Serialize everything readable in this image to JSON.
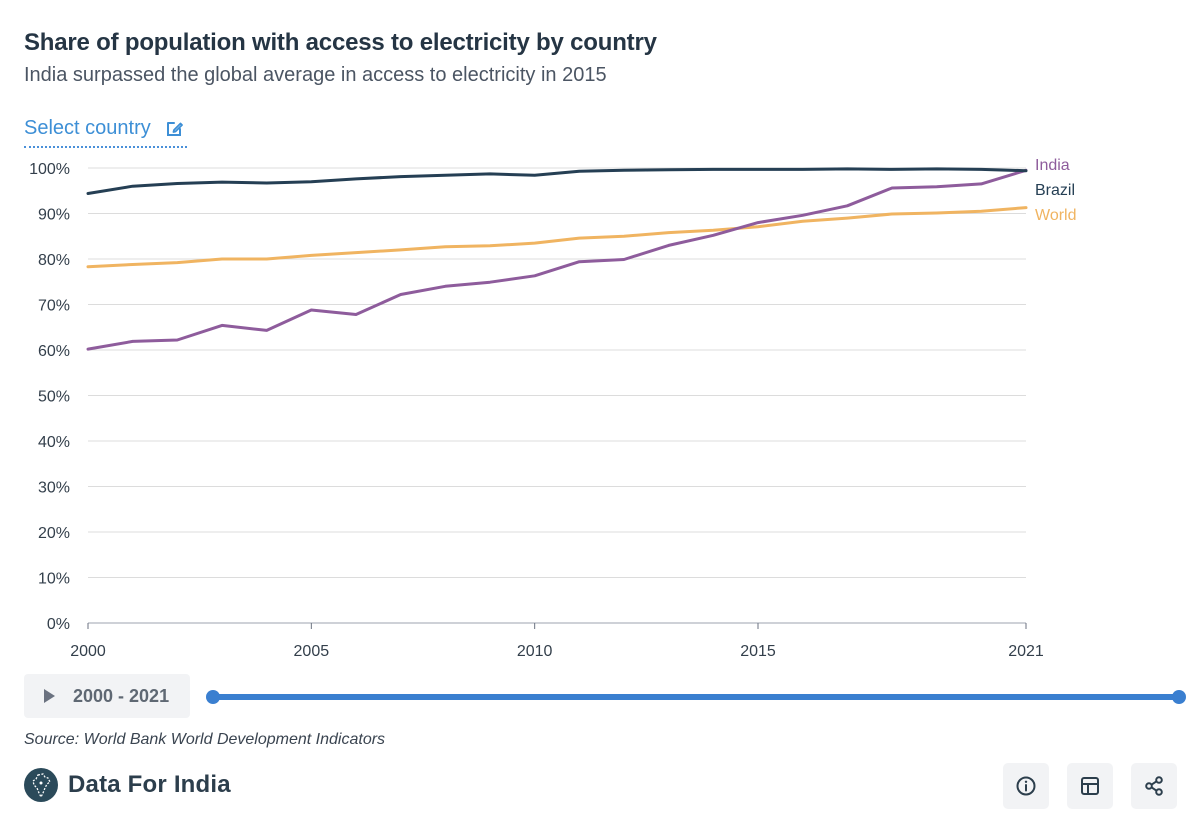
{
  "header": {
    "title": "Share of population with access to electricity by country",
    "subtitle": "India surpassed the global average in access to electricity in 2015",
    "select_country_label": "Select country"
  },
  "chart_data": {
    "type": "line",
    "title": "Share of population with access to electricity by country",
    "subtitle": "India surpassed the global average in access to electricity in 2015",
    "x": [
      2000,
      2001,
      2002,
      2003,
      2004,
      2005,
      2006,
      2007,
      2008,
      2009,
      2010,
      2011,
      2012,
      2013,
      2014,
      2015,
      2016,
      2017,
      2018,
      2019,
      2020,
      2021
    ],
    "xlim": [
      2000,
      2021
    ],
    "x_ticks": [
      "2000",
      "2005",
      "2010",
      "2015",
      "2021"
    ],
    "y_ticks": [
      "0%",
      "10%",
      "20%",
      "30%",
      "40%",
      "50%",
      "60%",
      "70%",
      "80%",
      "90%",
      "100%"
    ],
    "ylim": [
      0,
      100
    ],
    "grid": true,
    "legend_placement": "right",
    "series": [
      {
        "name": "India",
        "color": "#8e5c9c",
        "values": [
          60.2,
          61.9,
          62.2,
          65.4,
          64.3,
          68.8,
          67.8,
          72.2,
          74.0,
          74.9,
          76.3,
          79.4,
          79.9,
          83.0,
          85.2,
          88.0,
          89.6,
          91.7,
          95.6,
          95.9,
          96.5,
          99.5
        ]
      },
      {
        "name": "Brazil",
        "color": "#253f54",
        "values": [
          94.4,
          96.0,
          96.6,
          96.9,
          96.7,
          97.0,
          97.6,
          98.1,
          98.4,
          98.7,
          98.4,
          99.3,
          99.5,
          99.6,
          99.7,
          99.7,
          99.7,
          99.8,
          99.7,
          99.8,
          99.7,
          99.4
        ]
      },
      {
        "name": "World",
        "color": "#f0b461",
        "values": [
          78.3,
          78.8,
          79.2,
          80.0,
          80.0,
          80.8,
          81.4,
          82.0,
          82.7,
          82.9,
          83.5,
          84.6,
          85.0,
          85.8,
          86.3,
          87.1,
          88.3,
          89.0,
          89.9,
          90.1,
          90.5,
          91.3
        ]
      }
    ]
  },
  "time_control": {
    "range_label": "2000 - 2021",
    "range": [
      2000,
      2021
    ]
  },
  "source": "Source: World Bank World Development Indicators",
  "brand": {
    "name": "Data For India"
  },
  "colors": {
    "accent": "#3a7fd0",
    "title": "#253544"
  },
  "footer_buttons": [
    {
      "icon": "info-icon"
    },
    {
      "icon": "table-icon"
    },
    {
      "icon": "share-icon"
    }
  ]
}
